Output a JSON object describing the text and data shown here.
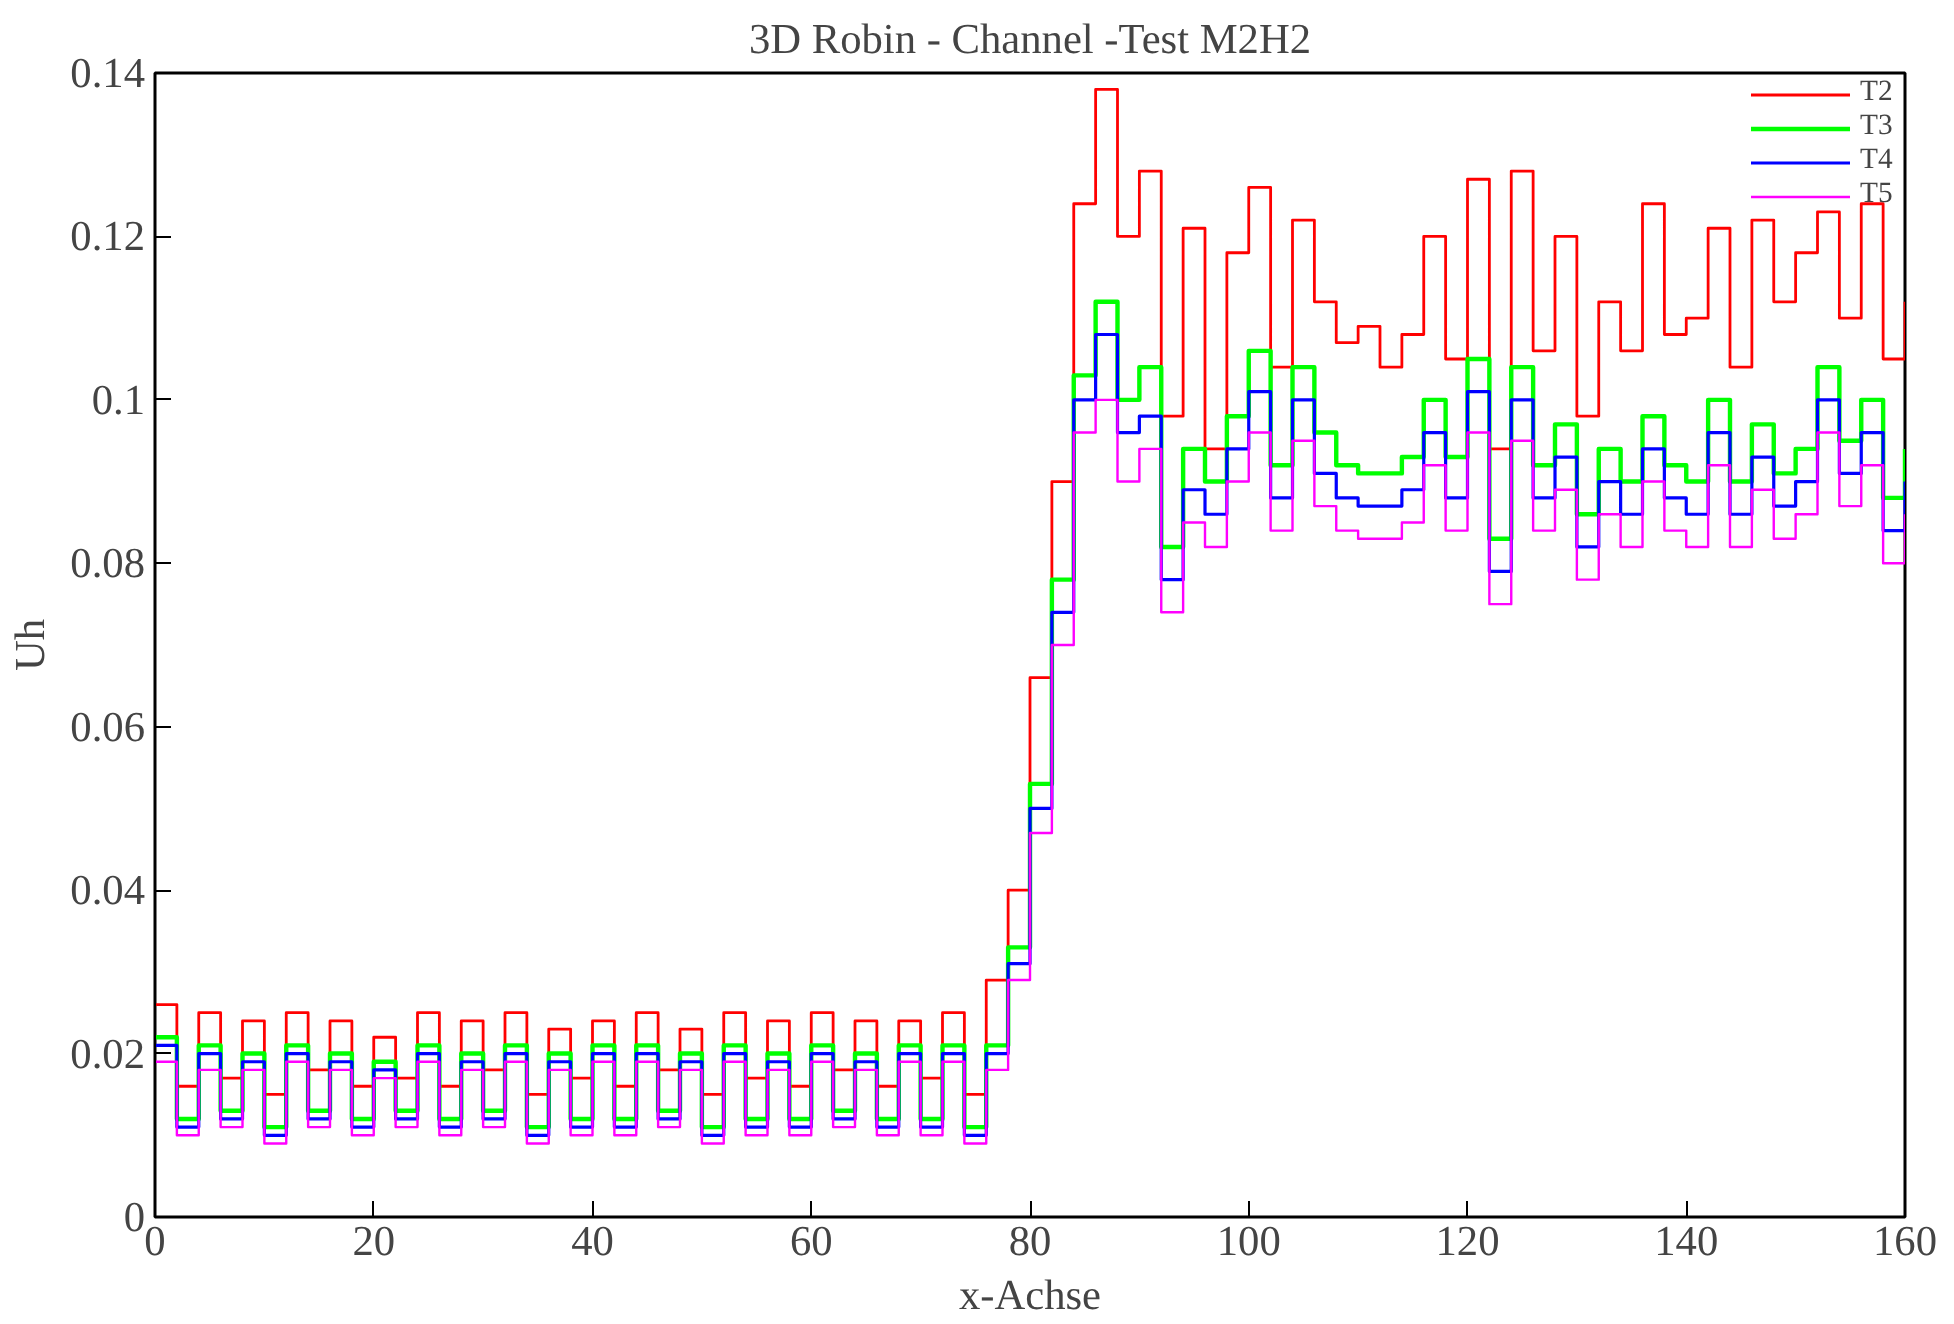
{
  "chart_data": {
    "type": "step",
    "title": "3D Robin - Channel -Test M2H2",
    "xlabel": "x-Achse",
    "ylabel": "Uh",
    "x": [
      0,
      2,
      4,
      6,
      8,
      10,
      12,
      14,
      16,
      18,
      20,
      22,
      24,
      26,
      28,
      30,
      32,
      34,
      36,
      38,
      40,
      42,
      44,
      46,
      48,
      50,
      52,
      54,
      56,
      58,
      60,
      62,
      64,
      66,
      68,
      70,
      72,
      74,
      76,
      78,
      80,
      82,
      84,
      86,
      88,
      90,
      92,
      94,
      96,
      98,
      100,
      102,
      104,
      106,
      108,
      110,
      112,
      114,
      116,
      118,
      120,
      122,
      124,
      126,
      128,
      130,
      132,
      134,
      136,
      138,
      140,
      142,
      144,
      146,
      148,
      150,
      152,
      154,
      156,
      158,
      160
    ],
    "series": [
      {
        "name": "T2",
        "color": "#ff0000",
        "values": [
          0.026,
          0.016,
          0.025,
          0.017,
          0.024,
          0.015,
          0.025,
          0.018,
          0.024,
          0.016,
          0.022,
          0.017,
          0.025,
          0.016,
          0.024,
          0.018,
          0.025,
          0.015,
          0.023,
          0.017,
          0.024,
          0.016,
          0.025,
          0.018,
          0.023,
          0.015,
          0.025,
          0.017,
          0.024,
          0.016,
          0.025,
          0.018,
          0.024,
          0.016,
          0.024,
          0.017,
          0.025,
          0.015,
          0.029,
          0.04,
          0.066,
          0.09,
          0.124,
          0.138,
          0.12,
          0.128,
          0.098,
          0.121,
          0.094,
          0.118,
          0.126,
          0.104,
          0.122,
          0.112,
          0.107,
          0.109,
          0.104,
          0.108,
          0.12,
          0.105,
          0.127,
          0.094,
          0.128,
          0.106,
          0.12,
          0.098,
          0.112,
          0.106,
          0.124,
          0.108,
          0.11,
          0.121,
          0.104,
          0.122,
          0.112,
          0.118,
          0.123,
          0.11,
          0.124,
          0.105,
          0.112
        ]
      },
      {
        "name": "T3",
        "color": "#00ff00",
        "values": [
          0.022,
          0.012,
          0.021,
          0.013,
          0.02,
          0.011,
          0.021,
          0.013,
          0.02,
          0.012,
          0.019,
          0.013,
          0.021,
          0.012,
          0.02,
          0.013,
          0.021,
          0.011,
          0.02,
          0.012,
          0.021,
          0.012,
          0.021,
          0.013,
          0.02,
          0.011,
          0.021,
          0.012,
          0.02,
          0.012,
          0.021,
          0.013,
          0.02,
          0.012,
          0.021,
          0.012,
          0.021,
          0.011,
          0.021,
          0.033,
          0.053,
          0.078,
          0.103,
          0.112,
          0.1,
          0.104,
          0.082,
          0.094,
          0.09,
          0.098,
          0.106,
          0.092,
          0.104,
          0.096,
          0.092,
          0.091,
          0.091,
          0.093,
          0.1,
          0.093,
          0.105,
          0.083,
          0.104,
          0.092,
          0.097,
          0.086,
          0.094,
          0.09,
          0.098,
          0.092,
          0.09,
          0.1,
          0.09,
          0.097,
          0.091,
          0.094,
          0.104,
          0.095,
          0.1,
          0.088,
          0.094
        ]
      },
      {
        "name": "T4",
        "color": "#0000ff",
        "values": [
          0.021,
          0.011,
          0.02,
          0.012,
          0.019,
          0.01,
          0.02,
          0.012,
          0.019,
          0.011,
          0.018,
          0.012,
          0.02,
          0.011,
          0.019,
          0.012,
          0.02,
          0.01,
          0.019,
          0.011,
          0.02,
          0.011,
          0.02,
          0.012,
          0.019,
          0.01,
          0.02,
          0.011,
          0.019,
          0.011,
          0.02,
          0.012,
          0.019,
          0.011,
          0.02,
          0.011,
          0.02,
          0.01,
          0.02,
          0.031,
          0.05,
          0.074,
          0.1,
          0.108,
          0.096,
          0.098,
          0.078,
          0.089,
          0.086,
          0.094,
          0.101,
          0.088,
          0.1,
          0.091,
          0.088,
          0.087,
          0.087,
          0.089,
          0.096,
          0.088,
          0.101,
          0.079,
          0.1,
          0.088,
          0.093,
          0.082,
          0.09,
          0.086,
          0.094,
          0.088,
          0.086,
          0.096,
          0.086,
          0.093,
          0.087,
          0.09,
          0.1,
          0.091,
          0.096,
          0.084,
          0.09
        ]
      },
      {
        "name": "T5",
        "color": "#ff00ff",
        "values": [
          0.019,
          0.01,
          0.018,
          0.011,
          0.018,
          0.009,
          0.019,
          0.011,
          0.018,
          0.01,
          0.017,
          0.011,
          0.019,
          0.01,
          0.018,
          0.011,
          0.019,
          0.009,
          0.018,
          0.01,
          0.019,
          0.01,
          0.019,
          0.011,
          0.018,
          0.009,
          0.019,
          0.01,
          0.018,
          0.01,
          0.019,
          0.011,
          0.018,
          0.01,
          0.019,
          0.01,
          0.019,
          0.009,
          0.018,
          0.029,
          0.047,
          0.07,
          0.096,
          0.1,
          0.09,
          0.094,
          0.074,
          0.085,
          0.082,
          0.09,
          0.096,
          0.084,
          0.095,
          0.087,
          0.084,
          0.083,
          0.083,
          0.085,
          0.092,
          0.084,
          0.096,
          0.075,
          0.095,
          0.084,
          0.089,
          0.078,
          0.086,
          0.082,
          0.09,
          0.084,
          0.082,
          0.092,
          0.082,
          0.089,
          0.083,
          0.086,
          0.096,
          0.087,
          0.092,
          0.08,
          0.086
        ]
      }
    ],
    "xlim": [
      0,
      160
    ],
    "xticks": [
      0,
      20,
      40,
      60,
      80,
      100,
      120,
      140,
      160
    ],
    "ylim": [
      0,
      0.14
    ],
    "yticks": [
      0,
      0.02,
      0.04,
      0.06,
      0.08,
      0.1,
      0.12,
      0.14
    ],
    "grid": false,
    "legend": "top right"
  }
}
